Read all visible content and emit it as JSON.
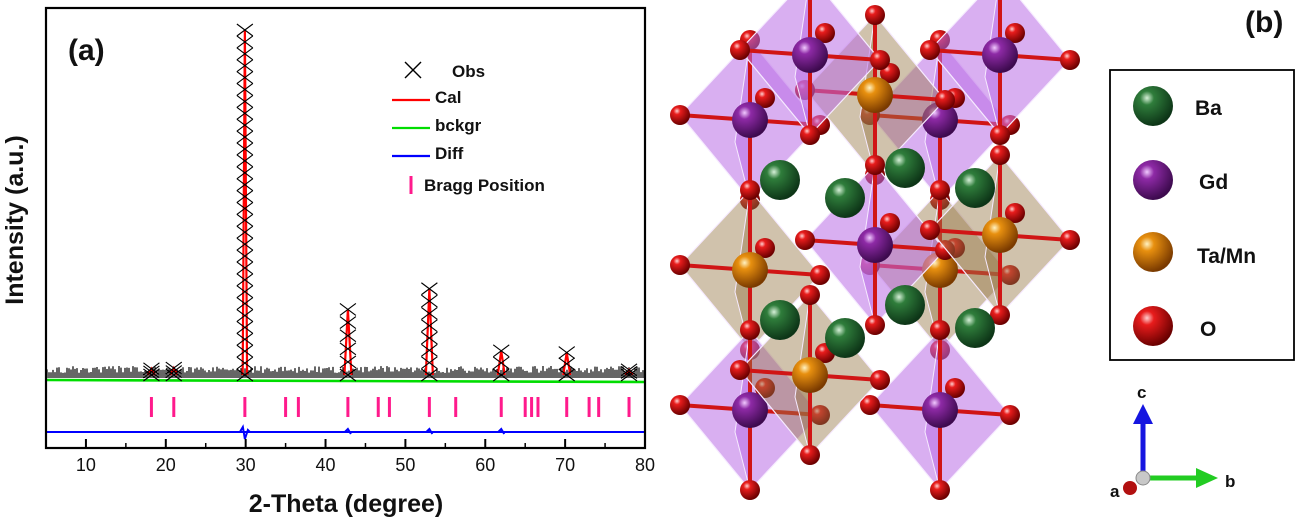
{
  "chart_data": {
    "type": "scatter",
    "panel_label": "(a)",
    "xlabel": "2-Theta (degree)",
    "ylabel": "Intensity (a.u.)",
    "xlim": [
      5,
      80
    ],
    "x_ticks": [
      "10",
      "20",
      "30",
      "40",
      "50",
      "60",
      "70",
      "80"
    ],
    "legend": [
      "Obs",
      "Cal",
      "bckgr",
      "Diff",
      "Bragg Position"
    ],
    "legend_position": "top-right",
    "colors": {
      "obs": "#000000",
      "cal": "#ff0000",
      "bckgr": "#00dd00",
      "diff": "#0000ff",
      "bragg": "#ff1a8c"
    },
    "peaks": [
      {
        "pos": 18.2,
        "height": 0.018
      },
      {
        "pos": 21.0,
        "height": 0.02
      },
      {
        "pos": 29.9,
        "height": 1.0
      },
      {
        "pos": 42.8,
        "height": 0.19
      },
      {
        "pos": 53.0,
        "height": 0.25
      },
      {
        "pos": 62.0,
        "height": 0.07
      },
      {
        "pos": 70.2,
        "height": 0.065
      },
      {
        "pos": 78.0,
        "height": 0.015
      }
    ],
    "bragg_positions": [
      18.2,
      21.0,
      29.9,
      35.0,
      36.6,
      42.8,
      46.6,
      48.0,
      53.0,
      56.3,
      62.0,
      65.0,
      65.8,
      66.6,
      70.2,
      73.0,
      74.2,
      78.0
    ]
  },
  "structure": {
    "panel_label": "(b)",
    "legend": [
      {
        "label": "Ba",
        "color": "#1f6b2e"
      },
      {
        "label": "Gd",
        "color": "#8e2aa6"
      },
      {
        "label": "Ta/Mn",
        "color": "#e0850f"
      },
      {
        "label": "O",
        "color": "#e01818"
      }
    ],
    "axes": {
      "c": "c",
      "b": "b",
      "a": "a"
    }
  }
}
